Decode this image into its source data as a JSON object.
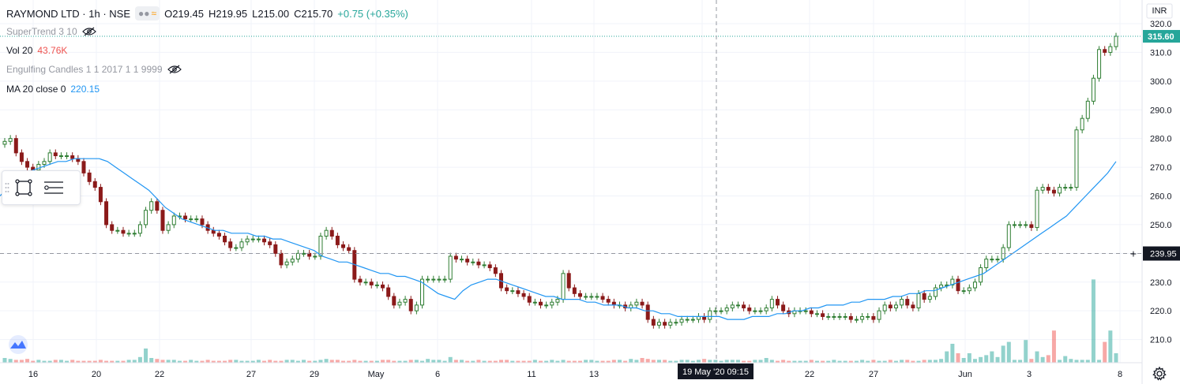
{
  "header": {
    "symbol": "RAYMOND LTD · 1h · NSE",
    "open": "O219.45",
    "high": "H219.95",
    "low": "L215.00",
    "close": "C215.70",
    "change": "+0.75 (+0.35%)"
  },
  "indicators": {
    "supertrend": "SuperTrend 3 10",
    "vol_label": "Vol 20",
    "vol_value": "43.76K",
    "engulfing": "Engulfing Candles 1 1 2017 1 1 9999",
    "ma_label": "MA 20 close 0",
    "ma_value": "220.15"
  },
  "colors": {
    "up": "#26a69a",
    "down": "#ef5350",
    "ma": "#2196f3",
    "candle_up": "#2e7d32",
    "candle_down": "#8b1a1a"
  },
  "chart_data": {
    "type": "candlestick",
    "currency": "INR",
    "ylim": [
      200,
      320
    ],
    "yticks": [
      210,
      220,
      230,
      240,
      250,
      260,
      270,
      280,
      290,
      300,
      310,
      320
    ],
    "x_tick_labels": [
      "16",
      "20",
      "22",
      "27",
      "29",
      "May",
      "6",
      "11",
      "13",
      "19 May '20",
      "22",
      "27",
      "Jun",
      "3",
      "8"
    ],
    "last_price": "315.60",
    "crosshair_price": "239.95",
    "crosshair_time": "19 May '20  09:15",
    "closes": [
      279,
      280,
      275,
      272,
      270,
      269,
      271,
      272,
      275,
      274,
      274,
      274,
      273,
      272,
      268,
      265,
      263,
      258,
      250,
      248,
      248,
      247,
      247,
      247,
      250,
      255,
      258,
      255,
      248,
      250,
      253,
      253,
      252,
      252,
      252,
      250,
      248,
      247,
      246,
      244,
      242,
      242,
      244,
      245,
      245,
      245,
      244,
      243,
      240,
      236,
      237,
      238,
      240,
      240,
      239,
      239,
      246,
      248,
      246,
      243,
      242,
      241,
      231,
      230,
      230,
      229,
      229,
      228,
      225,
      222,
      223,
      224,
      220,
      222,
      231,
      231,
      231,
      231,
      231,
      239,
      238,
      238,
      237,
      237,
      236,
      236,
      235,
      233,
      228,
      227,
      227,
      226,
      225,
      223,
      223,
      222,
      222,
      223,
      224,
      233,
      228,
      226,
      225,
      225,
      225,
      225,
      224,
      223,
      222,
      222,
      221,
      222,
      223,
      222,
      217,
      215,
      216,
      215,
      216,
      216,
      217,
      217,
      217,
      218,
      217,
      220,
      220,
      220,
      221,
      222,
      222,
      221,
      220,
      220,
      220,
      221,
      224,
      222,
      220,
      219,
      220,
      220,
      220,
      219,
      219,
      218,
      218,
      218,
      218,
      218,
      217,
      217,
      218,
      218,
      217,
      220,
      222,
      221,
      222,
      224,
      222,
      221,
      226,
      224,
      225,
      228,
      229,
      229,
      231,
      227,
      227,
      228,
      230,
      235,
      238,
      238,
      238,
      242,
      250,
      250,
      250,
      250,
      249,
      262,
      263,
      262,
      261,
      263,
      263,
      263,
      283,
      287,
      293,
      301,
      311,
      310,
      312,
      315.6
    ],
    "ma20": [
      260,
      263,
      266,
      268,
      269,
      270,
      271,
      272,
      272,
      273,
      273,
      273,
      273,
      272,
      270,
      268,
      266,
      264,
      262,
      259,
      256,
      254,
      252,
      251,
      250,
      249,
      248,
      248,
      247,
      247,
      247,
      246,
      246,
      245,
      245,
      244,
      243,
      242,
      241,
      239,
      238,
      237,
      237,
      236,
      235,
      234,
      233,
      233,
      232,
      232,
      231,
      230,
      228,
      226,
      225,
      224,
      227,
      229,
      230,
      231,
      231,
      230,
      229,
      228,
      227,
      226,
      225,
      225,
      224,
      224,
      224,
      223,
      223,
      222,
      222,
      222,
      221,
      221,
      220,
      220,
      219,
      219,
      218,
      218,
      218,
      218,
      218,
      218,
      217,
      217,
      217,
      218,
      218,
      218,
      219,
      219,
      220,
      220,
      221,
      221,
      222,
      222,
      222,
      223,
      223,
      224,
      224,
      224,
      225,
      225,
      226,
      226,
      227,
      227,
      228,
      229,
      230,
      231,
      232,
      233,
      235,
      237,
      239,
      241,
      243,
      245,
      247,
      249,
      251,
      253,
      256,
      259,
      262,
      265,
      268,
      272
    ],
    "volume_relative": [
      0.05,
      0.04,
      0.03,
      0.03,
      0.04,
      0.02,
      0.03,
      0.02,
      0.02,
      0.03,
      0.03,
      0.02,
      0.03,
      0.02,
      0.02,
      0.02,
      0.02,
      0.03,
      0.02,
      0.02,
      0.02,
      0.02,
      0.03,
      0.03,
      0.06,
      0.15,
      0.05,
      0.04,
      0.03,
      0.03,
      0.03,
      0.02,
      0.02,
      0.03,
      0.02,
      0.02,
      0.03,
      0.02,
      0.02,
      0.02,
      0.03,
      0.03,
      0.02,
      0.02,
      0.02,
      0.03,
      0.02,
      0.03,
      0.02,
      0.02,
      0.03,
      0.03,
      0.02,
      0.03,
      0.02,
      0.02,
      0.03,
      0.04,
      0.03,
      0.03,
      0.02,
      0.02,
      0.03,
      0.02,
      0.02,
      0.02,
      0.02,
      0.03,
      0.03,
      0.02,
      0.02,
      0.02,
      0.03,
      0.03,
      0.02,
      0.04,
      0.03,
      0.03,
      0.02,
      0.06,
      0.03,
      0.03,
      0.02,
      0.02,
      0.03,
      0.02,
      0.02,
      0.02,
      0.03,
      0.03,
      0.02,
      0.02,
      0.02,
      0.02,
      0.03,
      0.02,
      0.02,
      0.03,
      0.02,
      0.03,
      0.02,
      0.02,
      0.02,
      0.03,
      0.03,
      0.02,
      0.02,
      0.02,
      0.03,
      0.03,
      0.02,
      0.04,
      0.03,
      0.05,
      0.04,
      0.03,
      0.03,
      0.03,
      0.02,
      0.02,
      0.03,
      0.03,
      0.02,
      0.03,
      0.04,
      0.03,
      0.03,
      0.02,
      0.03,
      0.03,
      0.03,
      0.02,
      0.02,
      0.03,
      0.03,
      0.05,
      0.03,
      0.02,
      0.03,
      0.02,
      0.02,
      0.02,
      0.02,
      0.03,
      0.02,
      0.02,
      0.02,
      0.03,
      0.02,
      0.02,
      0.02,
      0.02,
      0.03,
      0.02,
      0.03,
      0.02,
      0.02,
      0.03,
      0.02,
      0.03,
      0.03,
      0.02,
      0.02,
      0.03,
      0.03,
      0.03,
      0.04,
      0.12,
      0.2,
      0.1,
      0.05,
      0.1,
      0.04,
      0.06,
      0.08,
      0.12,
      0.06,
      0.18,
      0.22,
      0.03,
      0.03,
      0.24,
      0.04,
      0.12,
      0.06,
      0.08,
      0.34,
      0.03,
      0.07,
      0.04,
      0.03,
      0.03,
      0.03,
      0.88,
      0.03,
      0.22,
      0.34,
      0.1,
      0.05,
      0.06,
      0.34,
      0.03,
      0.6,
      0.42,
      0.2,
      0.15,
      0.1
    ]
  }
}
